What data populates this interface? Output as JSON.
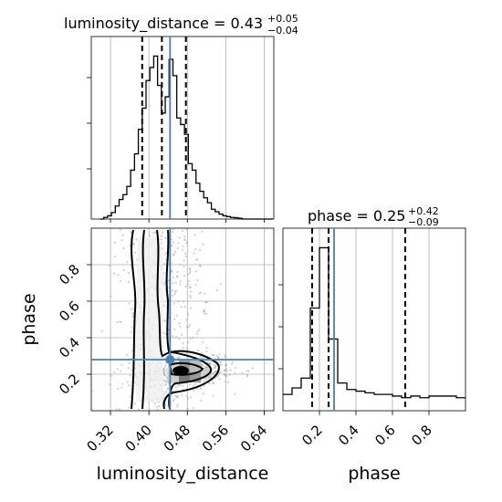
{
  "chart_data": {
    "type": "corner",
    "parameters": [
      "luminosity_distance",
      "phase"
    ],
    "titles": {
      "luminosity_distance": {
        "label": "luminosity_distance",
        "median": "0.43",
        "plus": "+0.05",
        "minus": "−0.04"
      },
      "phase": {
        "label": "phase",
        "median": "0.25",
        "plus": "+0.42",
        "minus": "−0.09"
      }
    },
    "axis_labels": {
      "x1": "luminosity_distance",
      "x2": "phase",
      "y": "phase"
    },
    "luminosity_distance": {
      "range": [
        0.28,
        0.66
      ],
      "ticks": [
        0.32,
        0.4,
        0.48,
        0.56,
        0.64
      ],
      "tick_labels": [
        "0.32",
        "0.40",
        "0.48",
        "0.56",
        "0.64"
      ],
      "quantiles": [
        0.386,
        0.427,
        0.477
      ],
      "truth": 0.444,
      "hist_bin_edges": [
        0.298,
        0.306,
        0.314,
        0.322,
        0.33,
        0.338,
        0.346,
        0.354,
        0.362,
        0.37,
        0.378,
        0.386,
        0.394,
        0.402,
        0.41,
        0.418,
        0.426,
        0.434,
        0.442,
        0.45,
        0.458,
        0.466,
        0.474,
        0.482,
        0.49,
        0.498,
        0.506,
        0.514,
        0.522,
        0.53,
        0.538,
        0.546,
        0.554,
        0.562,
        0.57,
        0.578,
        0.586,
        0.594,
        0.602,
        0.61,
        0.618,
        0.626,
        0.634,
        0.642,
        0.65,
        0.658
      ],
      "hist_counts": [
        0,
        0.01,
        0.02,
        0.04,
        0.08,
        0.12,
        0.15,
        0.2,
        0.3,
        0.4,
        0.55,
        0.68,
        0.85,
        0.93,
        1.0,
        0.82,
        0.65,
        0.75,
        0.98,
        0.88,
        0.62,
        0.58,
        0.52,
        0.34,
        0.3,
        0.22,
        0.17,
        0.13,
        0.1,
        0.06,
        0.045,
        0.03,
        0.02,
        0.015,
        0.01,
        0.008,
        0.005,
        0,
        0,
        0,
        0,
        0,
        0,
        0,
        0
      ]
    },
    "phase": {
      "range": [
        0.0,
        1.0
      ],
      "ticks": [
        0.2,
        0.4,
        0.6,
        0.8
      ],
      "tick_labels": [
        "0.2",
        "0.4",
        "0.6",
        "0.8"
      ],
      "quantiles": [
        0.16,
        0.25,
        0.67
      ],
      "truth": 0.28,
      "hist_bin_edges": [
        0.0,
        0.05,
        0.1,
        0.15,
        0.2,
        0.25,
        0.3,
        0.35,
        0.4,
        0.45,
        0.5,
        0.55,
        0.6,
        0.65,
        0.7,
        0.75,
        0.8,
        0.85,
        0.9,
        0.95,
        1.0
      ],
      "hist_counts": [
        0.1,
        0.14,
        0.2,
        0.63,
        1.0,
        0.44,
        0.17,
        0.13,
        0.12,
        0.11,
        0.1,
        0.1,
        0.09,
        0.08,
        0.09,
        0.08,
        0.09,
        0.09,
        0.09,
        0.08
      ]
    },
    "joint_2d": {
      "x": "luminosity_distance",
      "y": "phase",
      "truth": [
        0.444,
        0.28
      ],
      "density_peak": [
        0.47,
        0.225
      ],
      "contour_levels": 3,
      "grid": true
    }
  },
  "colors": {
    "truth": "#4682b4",
    "line": "#000000",
    "grid": "#b0b0b0",
    "points": "#9a9a9a"
  }
}
